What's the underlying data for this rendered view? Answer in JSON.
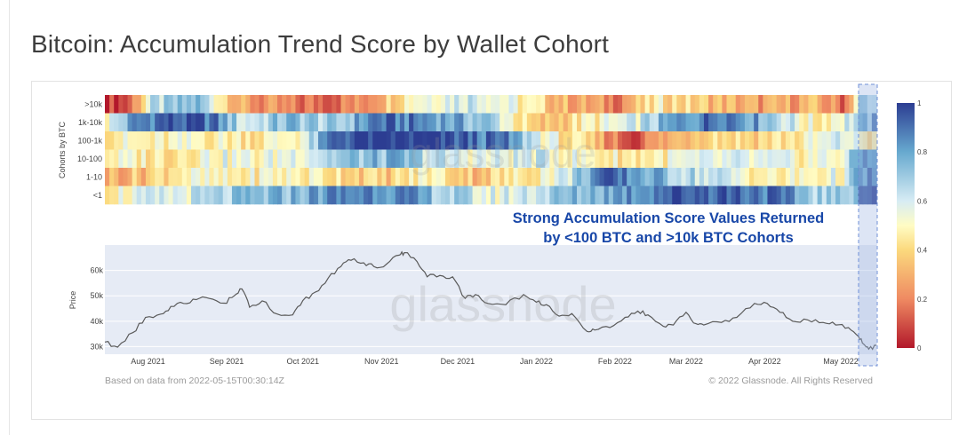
{
  "page": {
    "title": "Bitcoin: Accumulation Trend Score by Wallet Cohort"
  },
  "colors": {
    "accent_blue": "#1847a8",
    "heat_low": "#b2182b",
    "heat_mid": "#fffcc4",
    "heat_high": "#2c3d92",
    "price_line": "#5a5a5a",
    "plot_bg": "#e6ebf5",
    "highlight_box": "#6f8fd6"
  },
  "chart_data": [
    {
      "type": "heatmap",
      "ylabel": "Cohorts by BTC",
      "rows": [
        ">10k",
        "1k-10k",
        "100-1k",
        "10-100",
        "1-10",
        "<1"
      ],
      "colorbar": {
        "min": 0,
        "max": 1,
        "ticks": [
          "0",
          "0.2",
          "0.4",
          "0.6",
          "0.8",
          "1"
        ]
      },
      "date_range": [
        "2021-07-15",
        "2022-05-15"
      ],
      "series": [
        {
          "row": ">10k",
          "knots": [
            [
              0,
              0.05
            ],
            [
              3,
              0.1
            ],
            [
              6,
              0.6
            ],
            [
              12,
              0.75
            ],
            [
              18,
              0.25
            ],
            [
              25,
              0.15
            ],
            [
              33,
              0.2
            ],
            [
              40,
              0.55
            ],
            [
              48,
              0.65
            ],
            [
              55,
              0.45
            ],
            [
              60,
              0.3
            ],
            [
              66,
              0.2
            ],
            [
              72,
              0.45
            ],
            [
              78,
              0.35
            ],
            [
              85,
              0.25
            ],
            [
              92,
              0.3
            ],
            [
              96,
              0.15
            ],
            [
              98,
              0.7
            ],
            [
              100,
              0.6
            ]
          ]
        },
        {
          "row": "1k-10k",
          "knots": [
            [
              0,
              0.5
            ],
            [
              4,
              0.85
            ],
            [
              8,
              0.95
            ],
            [
              14,
              0.9
            ],
            [
              18,
              0.6
            ],
            [
              24,
              0.75
            ],
            [
              30,
              0.65
            ],
            [
              35,
              0.9
            ],
            [
              42,
              0.85
            ],
            [
              50,
              0.7
            ],
            [
              56,
              0.3
            ],
            [
              62,
              0.45
            ],
            [
              68,
              0.55
            ],
            [
              74,
              0.8
            ],
            [
              80,
              0.95
            ],
            [
              86,
              0.75
            ],
            [
              92,
              0.45
            ],
            [
              96,
              0.6
            ],
            [
              100,
              0.8
            ]
          ]
        },
        {
          "row": "100-1k",
          "knots": [
            [
              0,
              0.5
            ],
            [
              6,
              0.45
            ],
            [
              12,
              0.5
            ],
            [
              20,
              0.45
            ],
            [
              26,
              0.55
            ],
            [
              30,
              0.95
            ],
            [
              36,
              1.0
            ],
            [
              44,
              0.95
            ],
            [
              52,
              0.85
            ],
            [
              58,
              0.5
            ],
            [
              64,
              0.3
            ],
            [
              68,
              0.1
            ],
            [
              72,
              0.25
            ],
            [
              78,
              0.45
            ],
            [
              84,
              0.4
            ],
            [
              90,
              0.45
            ],
            [
              96,
              0.6
            ],
            [
              100,
              0.4
            ]
          ]
        },
        {
          "row": "10-100",
          "knots": [
            [
              0,
              0.5
            ],
            [
              8,
              0.45
            ],
            [
              14,
              0.55
            ],
            [
              20,
              0.5
            ],
            [
              30,
              0.7
            ],
            [
              38,
              0.75
            ],
            [
              44,
              0.6
            ],
            [
              50,
              0.55
            ],
            [
              56,
              0.6
            ],
            [
              62,
              0.5
            ],
            [
              68,
              0.45
            ],
            [
              74,
              0.5
            ],
            [
              82,
              0.55
            ],
            [
              90,
              0.5
            ],
            [
              96,
              0.55
            ],
            [
              98,
              0.85
            ],
            [
              100,
              0.9
            ]
          ]
        },
        {
          "row": "1-10",
          "knots": [
            [
              0,
              0.3
            ],
            [
              5,
              0.35
            ],
            [
              10,
              0.5
            ],
            [
              16,
              0.45
            ],
            [
              22,
              0.5
            ],
            [
              30,
              0.45
            ],
            [
              36,
              0.35
            ],
            [
              42,
              0.5
            ],
            [
              48,
              0.35
            ],
            [
              54,
              0.45
            ],
            [
              60,
              0.6
            ],
            [
              64,
              0.9
            ],
            [
              68,
              0.85
            ],
            [
              74,
              0.7
            ],
            [
              80,
              0.6
            ],
            [
              86,
              0.45
            ],
            [
              92,
              0.5
            ],
            [
              96,
              0.55
            ],
            [
              98,
              0.8
            ],
            [
              100,
              0.9
            ]
          ]
        },
        {
          "row": "<1",
          "knots": [
            [
              0,
              0.5
            ],
            [
              6,
              0.55
            ],
            [
              12,
              0.6
            ],
            [
              18,
              0.7
            ],
            [
              24,
              0.75
            ],
            [
              30,
              0.85
            ],
            [
              36,
              0.9
            ],
            [
              42,
              0.75
            ],
            [
              50,
              0.55
            ],
            [
              56,
              0.65
            ],
            [
              62,
              0.75
            ],
            [
              68,
              0.85
            ],
            [
              74,
              0.95
            ],
            [
              80,
              0.95
            ],
            [
              86,
              0.9
            ],
            [
              92,
              0.7
            ],
            [
              96,
              0.65
            ],
            [
              98,
              0.95
            ],
            [
              100,
              1.0
            ]
          ]
        }
      ]
    },
    {
      "type": "line",
      "ylabel": "Price",
      "yticks": [
        "30k",
        "40k",
        "50k",
        "60k"
      ],
      "ylim": [
        27000,
        70000
      ],
      "xticks": [
        "Aug 2021",
        "Sep 2021",
        "Oct 2021",
        "Nov 2021",
        "Dec 2021",
        "Jan 2022",
        "Feb 2022",
        "Mar 2022",
        "Apr 2022",
        "May 2022"
      ],
      "xtick_dates": [
        "2021-08-01",
        "2021-09-01",
        "2021-10-01",
        "2021-11-01",
        "2021-12-01",
        "2022-01-01",
        "2022-02-01",
        "2022-03-01",
        "2022-04-01",
        "2022-05-01"
      ],
      "x_range": [
        "2021-07-15",
        "2022-05-15"
      ],
      "series": [
        {
          "x": [
            "2021-07-15",
            "2021-07-20",
            "2021-07-26",
            "2021-07-31",
            "2021-08-06",
            "2021-08-10",
            "2021-08-15",
            "2021-08-20",
            "2021-08-25",
            "2021-08-31",
            "2021-09-04",
            "2021-09-07",
            "2021-09-10",
            "2021-09-15",
            "2021-09-21",
            "2021-09-27",
            "2021-10-01",
            "2021-10-06",
            "2021-10-11",
            "2021-10-16",
            "2021-10-20",
            "2021-10-25",
            "2021-10-29",
            "2021-11-03",
            "2021-11-08",
            "2021-11-10",
            "2021-11-15",
            "2021-11-19",
            "2021-11-24",
            "2021-11-29",
            "2021-12-04",
            "2021-12-08",
            "2021-12-13",
            "2021-12-20",
            "2021-12-27",
            "2022-01-01",
            "2022-01-05",
            "2022-01-10",
            "2022-01-15",
            "2022-01-21",
            "2022-01-24",
            "2022-01-30",
            "2022-02-05",
            "2022-02-10",
            "2022-02-14",
            "2022-02-20",
            "2022-02-24",
            "2022-03-01",
            "2022-03-05",
            "2022-03-08",
            "2022-03-15",
            "2022-03-21",
            "2022-03-28",
            "2022-04-02",
            "2022-04-07",
            "2022-04-12",
            "2022-04-18",
            "2022-04-24",
            "2022-04-29",
            "2022-05-04",
            "2022-05-08",
            "2022-05-10",
            "2022-05-12",
            "2022-05-15"
          ],
          "y": [
            31800,
            29800,
            35500,
            41500,
            42800,
            45800,
            47000,
            48500,
            49000,
            47100,
            50000,
            52700,
            45500,
            48000,
            42800,
            42500,
            48100,
            51500,
            57000,
            61500,
            64000,
            63000,
            61500,
            62500,
            66000,
            67000,
            63500,
            57500,
            58000,
            57500,
            49000,
            50500,
            47000,
            46500,
            50500,
            47500,
            46500,
            42000,
            43000,
            36000,
            36500,
            37500,
            41500,
            44000,
            42500,
            38000,
            38500,
            43500,
            39000,
            38500,
            39500,
            41500,
            47000,
            47000,
            43500,
            40000,
            40500,
            39500,
            38500,
            37500,
            34000,
            31000,
            29000,
            30500
          ]
        }
      ]
    }
  ],
  "annotation": {
    "line1": "Strong Accumulation Score Values Returned",
    "line2": "by <100 BTC and >10k BTC Cohorts"
  },
  "footer": {
    "watermark": "glassnode",
    "data_note": "Based on data from 2022-05-15T00:30:14Z",
    "copyright": "© 2022 Glassnode. All Rights Reserved"
  }
}
